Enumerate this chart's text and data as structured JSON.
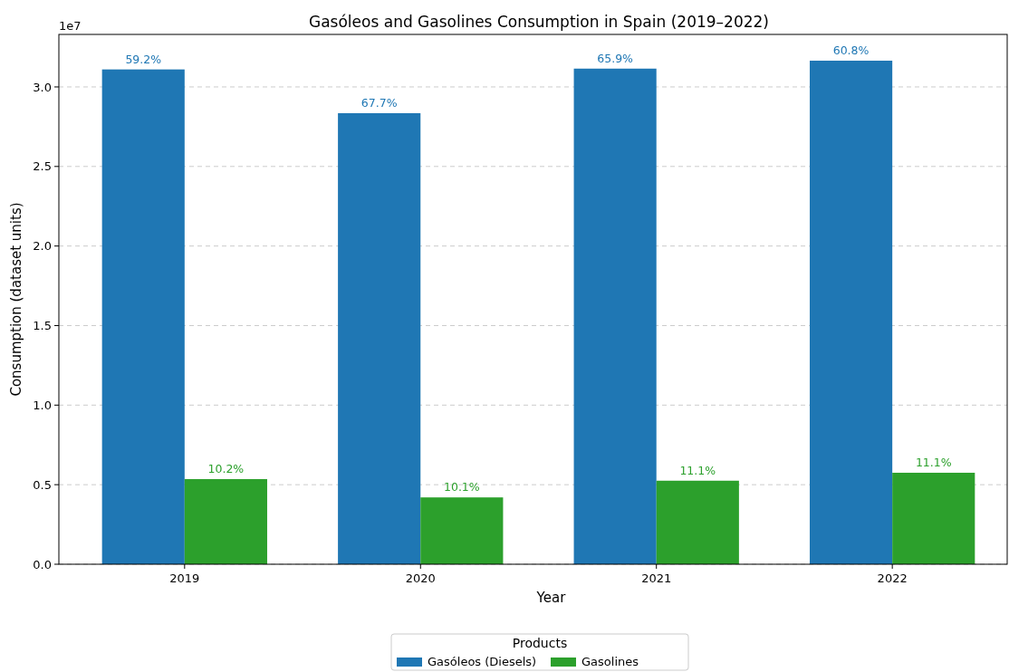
{
  "chart_data": {
    "type": "bar",
    "title": "Gasóleos and Gasolines Consumption in Spain (2019–2022)",
    "xlabel": "Year",
    "ylabel": "Consumption (dataset units)",
    "legend_title": "Products",
    "categories": [
      "2019",
      "2020",
      "2021",
      "2022"
    ],
    "series": [
      {
        "name": "Gasóleos (Diesels)",
        "color": "#1f77b4",
        "values": [
          3.11,
          2.835,
          3.115,
          3.165
        ]
      },
      {
        "name": "Gasolines",
        "color": "#2ca02c",
        "values": [
          0.535,
          0.42,
          0.525,
          0.575
        ]
      }
    ],
    "ylim": [
      0,
      3.33
    ],
    "yticks": [
      {
        "value": 0,
        "label": "0.0"
      },
      0.5,
      {
        "value": 1,
        "label": "1.0"
      },
      1.5,
      {
        "value": 2,
        "label": "2.0"
      },
      2.5,
      {
        "value": 3,
        "label": "3.0"
      }
    ],
    "annotations": [
      "1e7",
      {
        "text": "59.2%",
        "x": "2019",
        "y": 3.11
      },
      {
        "text": "67.7%",
        "x": "2020",
        "y": 2.835
      },
      {
        "text": "65.9%",
        "x": "2021",
        "y": 3.115
      },
      {
        "text": "60.8%",
        "x": "2022",
        "y": 3.165
      },
      {
        "text": "10.2%",
        "x": "2019",
        "y": 0.535
      },
      {
        "text": "10.1%",
        "x": "2020",
        "y": 0.42
      },
      {
        "text": "11.1%",
        "x": "2021",
        "y": 0.525
      },
      {
        "text": "11.1%",
        "x": "2022",
        "y": 0.575
      }
    ],
    "grid": "y",
    "legend": "bottom"
  }
}
